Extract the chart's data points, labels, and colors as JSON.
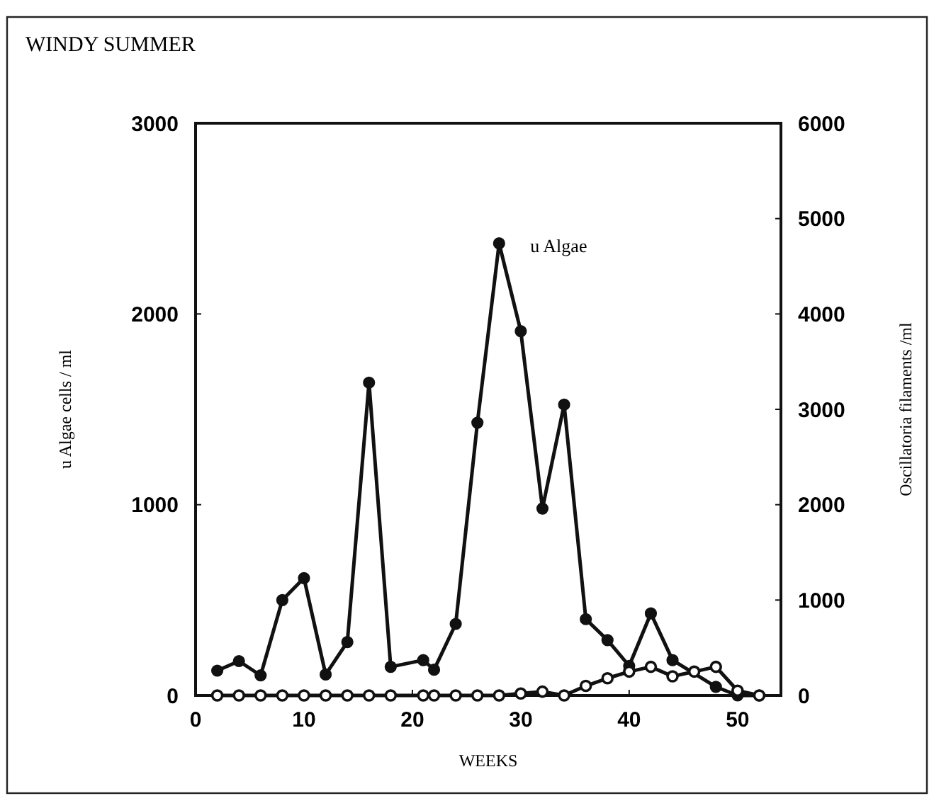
{
  "chart_data": {
    "type": "line",
    "title": "WINDY SUMMER",
    "xlabel": "WEEKS",
    "ylabel": "u Algae cells / ml",
    "y2label": "Oscillatoria filaments /ml",
    "xlim": [
      0,
      54
    ],
    "xticks": [
      0,
      10,
      20,
      30,
      40,
      50
    ],
    "ylim": [
      0,
      3000
    ],
    "yticks": [
      0,
      1000,
      2000,
      3000
    ],
    "y2lim": [
      0,
      6000
    ],
    "y2ticks": [
      0,
      1000,
      2000,
      3000,
      4000,
      5000,
      6000
    ],
    "marker": "circle",
    "annotations": [
      {
        "text": "u Algae",
        "x": 28,
        "y": 2370
      }
    ],
    "series": [
      {
        "color": "#111111",
        "x": [
          2,
          4,
          6,
          8,
          10,
          12,
          14,
          16,
          18,
          21,
          22,
          24,
          26,
          28,
          30,
          32,
          34,
          36,
          38,
          40,
          42,
          44,
          46,
          48,
          50,
          52
        ],
        "values": [
          130,
          180,
          105,
          500,
          615,
          110,
          280,
          1640,
          150,
          185,
          135,
          375,
          1430,
          2370,
          1910,
          980,
          1525,
          400,
          290,
          155,
          430,
          185,
          null,
          45,
          0,
          0
        ]
      },
      {
        "axis": "y2",
        "color": "#111111",
        "x": [
          2,
          4,
          6,
          8,
          10,
          12,
          14,
          16,
          18,
          21,
          22,
          24,
          26,
          28,
          30,
          32,
          34,
          36,
          38,
          40,
          42,
          44,
          46,
          48,
          50,
          52
        ],
        "values": [
          0,
          0,
          0,
          0,
          0,
          0,
          0,
          0,
          0,
          0,
          0,
          0,
          0,
          0,
          20,
          40,
          0,
          100,
          180,
          250,
          300,
          200,
          250,
          300,
          50,
          0
        ]
      }
    ]
  }
}
